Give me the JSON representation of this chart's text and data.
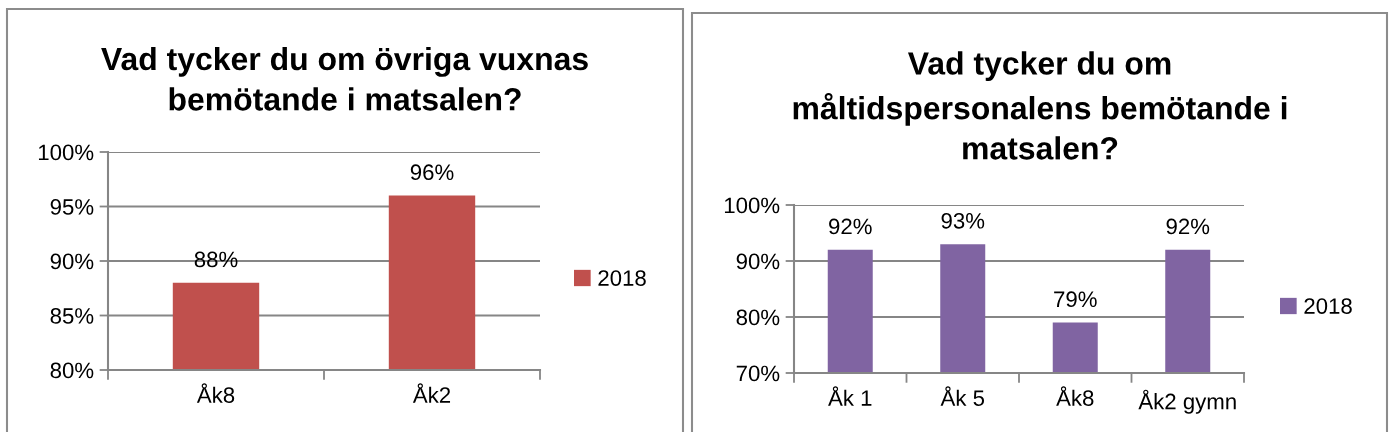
{
  "chart_data": [
    {
      "type": "bar",
      "title": "Vad tycker du om övriga vuxnas\nbemötande i matsalen?",
      "categories": [
        "Åk8",
        "Åk2"
      ],
      "series": [
        {
          "name": "2018",
          "color": "#c0504d",
          "values": [
            88,
            96
          ],
          "value_labels": [
            "88%",
            "96%"
          ]
        }
      ],
      "ylim": [
        80,
        100
      ],
      "yticks": [
        {
          "value": 80,
          "label": "80%"
        },
        {
          "value": 85,
          "label": "85%"
        },
        {
          "value": 90,
          "label": "90%"
        },
        {
          "value": 95,
          "label": "95%"
        },
        {
          "value": 100,
          "label": "100%"
        }
      ],
      "grid": "y",
      "legend": "right"
    },
    {
      "type": "bar",
      "title": "Vad tycker du om\nmåltidspersonalens bemötande i\nmatsalen?",
      "categories": [
        "Åk 1",
        "Åk 5",
        "Åk8",
        "Åk2 gymn"
      ],
      "series": [
        {
          "name": "2018",
          "color": "#8064a2",
          "values": [
            92,
            93,
            79,
            92
          ],
          "value_labels": [
            "92%",
            "93%",
            "79%",
            "92%"
          ]
        }
      ],
      "ylim": [
        70,
        100
      ],
      "yticks": [
        {
          "value": 70,
          "label": "70%"
        },
        {
          "value": 80,
          "label": "80%"
        },
        {
          "value": 90,
          "label": "90%"
        },
        {
          "value": 100,
          "label": "100%"
        }
      ],
      "grid": "y",
      "legend": "right"
    }
  ]
}
